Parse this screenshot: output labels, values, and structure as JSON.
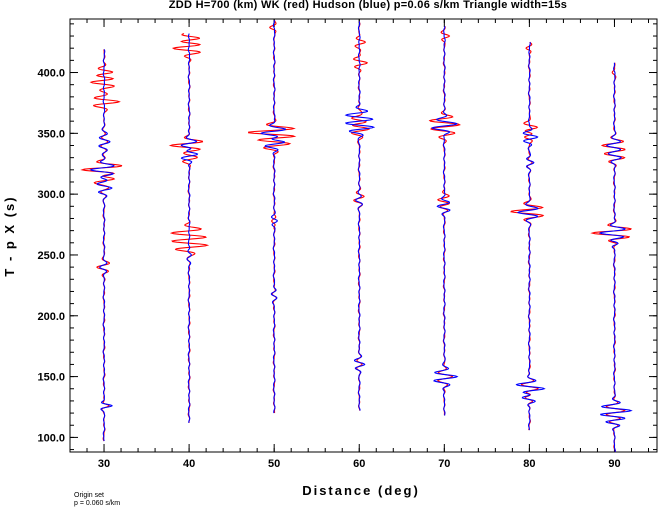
{
  "chart_data": {
    "type": "line",
    "title": "ZDD H=700 (km) WK (red) Hudson (blue) p=0.06 s/km Triangle width=15s",
    "xlabel": "Distance (deg)",
    "ylabel": "T - p X (s)",
    "xlim": [
      26,
      95
    ],
    "ylim": [
      88,
      444
    ],
    "xticks": [
      30,
      40,
      50,
      60,
      70,
      80,
      90
    ],
    "xtick_labels": [
      "30",
      "40",
      "50",
      "60",
      "70",
      "80",
      "90"
    ],
    "yticks": [
      100,
      150,
      200,
      250,
      300,
      350,
      400
    ],
    "ytick_labels": [
      "100.0",
      "150.0",
      "200.0",
      "250.0",
      "300.0",
      "350.0",
      "400.0"
    ],
    "minor_x_step": 2,
    "minor_y_step": 10,
    "grid": false,
    "legend": "none",
    "series_colors": {
      "WK": "#ff0000",
      "Hudson": "#0000ff"
    },
    "traces": [
      {
        "distance": 30,
        "t_start": 97,
        "t_end": 419,
        "events": [
          [
            126,
            2.2,
            3
          ],
          [
            240,
            -1.0,
            6
          ],
          [
            305,
            2.0,
            7
          ],
          [
            320,
            -3.2,
            6
          ],
          [
            343,
            1.6,
            8
          ]
        ],
        "red_events": [
          [
            313,
            3.5,
            5
          ],
          [
            320,
            -4.0,
            6
          ],
          [
            376,
            4.0,
            5
          ],
          [
            392,
            -3.5,
            6
          ],
          [
            400,
            2.5,
            5
          ],
          [
            240,
            -1.2,
            6
          ]
        ]
      },
      {
        "distance": 40,
        "t_start": 112,
        "t_end": 432,
        "events": [
          [
            333,
            2.6,
            6
          ],
          [
            340,
            -2.5,
            6
          ],
          [
            250,
            0.5,
            8
          ]
        ],
        "red_events": [
          [
            258,
            4.5,
            6
          ],
          [
            268,
            -4.0,
            6
          ],
          [
            330,
            3.0,
            5
          ],
          [
            340,
            -3.5,
            5
          ],
          [
            420,
            -4.0,
            6
          ],
          [
            428,
            3.0,
            5
          ]
        ]
      },
      {
        "distance": 50,
        "t_start": 120,
        "t_end": 443,
        "events": [
          [
            350,
            -4.0,
            6
          ],
          [
            343,
            3.5,
            6
          ],
          [
            278,
            1.0,
            5
          ],
          [
            218,
            -0.8,
            6
          ]
        ],
        "red_events": [
          [
            351,
            -5.0,
            6
          ],
          [
            341,
            3.5,
            6
          ],
          [
            278,
            -1.0,
            5
          ],
          [
            437,
            -1.0,
            4
          ]
        ]
      },
      {
        "distance": 60,
        "t_start": 122,
        "t_end": 442,
        "events": [
          [
            160,
            1.5,
            6
          ],
          [
            295,
            -1.0,
            6
          ],
          [
            355,
            3.5,
            6
          ],
          [
            365,
            -3.0,
            6
          ]
        ],
        "red_events": [
          [
            353,
            2.5,
            6
          ],
          [
            362,
            -3.5,
            6
          ],
          [
            408,
            2.0,
            5
          ],
          [
            425,
            1.5,
            5
          ],
          [
            298,
            1.0,
            6
          ]
        ]
      },
      {
        "distance": 70,
        "t_start": 118,
        "t_end": 438,
        "events": [
          [
            150,
            3.2,
            7
          ],
          [
            290,
            -1.8,
            6
          ],
          [
            358,
            2.5,
            6
          ],
          [
            354,
            -1.5,
            4
          ]
        ],
        "red_events": [
          [
            360,
            -3.0,
            6
          ],
          [
            350,
            2.0,
            5
          ],
          [
            430,
            1.5,
            4
          ],
          [
            295,
            -1.5,
            6
          ]
        ]
      },
      {
        "distance": 80,
        "t_start": 106,
        "t_end": 425,
        "events": [
          [
            140,
            4.0,
            7
          ],
          [
            133,
            -3.0,
            5
          ],
          [
            285,
            -3.0,
            6
          ],
          [
            347,
            2.0,
            6
          ],
          [
            326,
            1.2,
            5
          ]
        ],
        "red_events": [
          [
            286,
            -3.5,
            6
          ],
          [
            347,
            -2.5,
            5
          ],
          [
            355,
            2.0,
            5
          ],
          [
            420,
            -1.0,
            4
          ]
        ]
      },
      {
        "distance": 90,
        "t_start": 88,
        "t_end": 408,
        "events": [
          [
            122,
            4.0,
            7
          ],
          [
            113,
            -2.0,
            5
          ],
          [
            268,
            -3.5,
            6
          ],
          [
            340,
            -2.0,
            6
          ],
          [
            330,
            1.5,
            5
          ],
          [
            260,
            1.0,
            5
          ]
        ],
        "red_events": [
          [
            268,
            -3.5,
            6
          ],
          [
            340,
            -2.0,
            6
          ],
          [
            330,
            1.5,
            5
          ],
          [
            400,
            -0.5,
            4
          ]
        ]
      }
    ]
  },
  "footnote": {
    "line1": "Origin set",
    "line2": "p = 0.060 s/km"
  }
}
